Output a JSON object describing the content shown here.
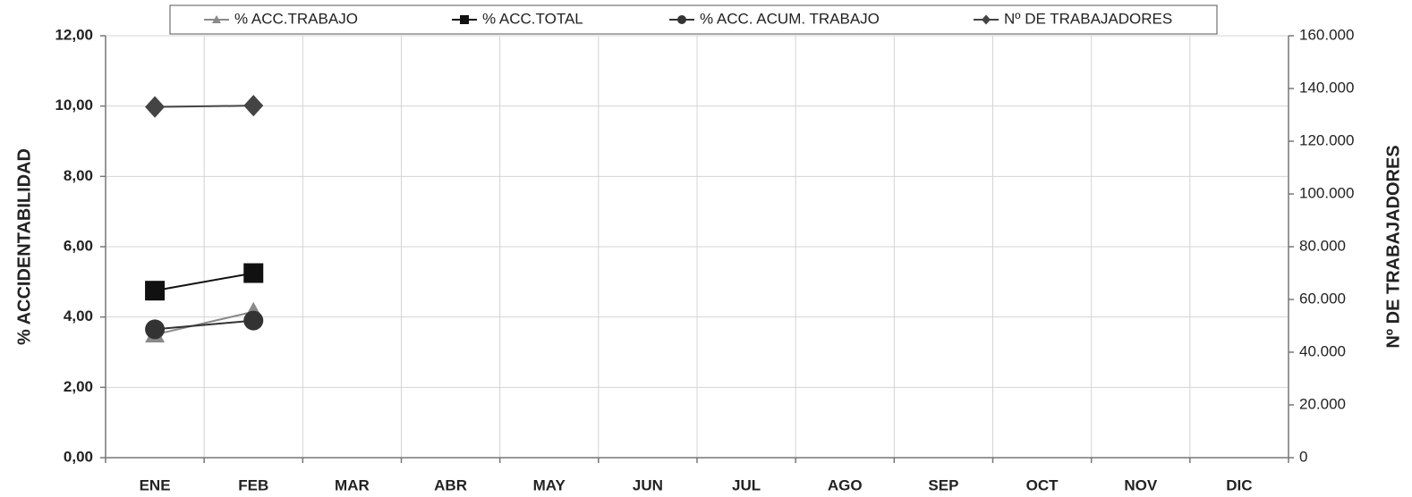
{
  "chart_data": {
    "type": "line",
    "y_label": "% ACCIDENTABILIDAD",
    "y2_label": "Nº DE TRABAJADORES",
    "categories": [
      "ENE",
      "FEB",
      "MAR",
      "ABR",
      "MAY",
      "JUN",
      "JUL",
      "AGO",
      "SEP",
      "OCT",
      "NOV",
      "DIC"
    ],
    "series": [
      {
        "name": "% ACC.TRABAJO",
        "color": "#8a8a8a",
        "marker": "triangle",
        "values": [
          3.5,
          4.15,
          null,
          null,
          null,
          null,
          null,
          null,
          null,
          null,
          null,
          null
        ]
      },
      {
        "name": "% ACC.TOTAL",
        "color": "#111111",
        "marker": "square",
        "values": [
          4.75,
          5.25,
          null,
          null,
          null,
          null,
          null,
          null,
          null,
          null,
          null,
          null
        ]
      },
      {
        "name": "% ACC. ACUM. TRABAJO",
        "color": "#333333",
        "marker": "circle",
        "values": [
          3.65,
          3.9,
          null,
          null,
          null,
          null,
          null,
          null,
          null,
          null,
          null,
          null
        ]
      },
      {
        "name": "Nº DE TRABAJADORES",
        "color": "#444444",
        "marker": "diamond",
        "axis": "y2",
        "values": [
          133000,
          133500,
          null,
          null,
          null,
          null,
          null,
          null,
          null,
          null,
          null,
          null
        ]
      }
    ],
    "ylim": [
      0,
      12
    ],
    "yticks": [
      {
        "value": 0,
        "label": "0,00"
      },
      {
        "value": 2,
        "label": "2,00"
      },
      {
        "value": 4,
        "label": "4,00"
      },
      {
        "value": 6,
        "label": "6,00"
      },
      {
        "value": 8,
        "label": "8,00"
      },
      {
        "value": 10,
        "label": "10,00"
      },
      {
        "value": 12,
        "label": "12,00"
      }
    ],
    "y2lim": [
      0,
      160000
    ],
    "y2ticks": [
      0,
      {
        "value": 20000,
        "label": "20.000"
      },
      {
        "value": 40000,
        "label": "40.000"
      },
      {
        "value": 60000,
        "label": "60.000"
      },
      {
        "value": 80000,
        "label": "80.000"
      },
      {
        "value": 100000,
        "label": "100.000"
      },
      {
        "value": 120000,
        "label": "120.000"
      },
      {
        "value": 140000,
        "label": "140.000"
      },
      {
        "value": 160000,
        "label": "160.000"
      }
    ],
    "grid": true,
    "legend": "top"
  }
}
